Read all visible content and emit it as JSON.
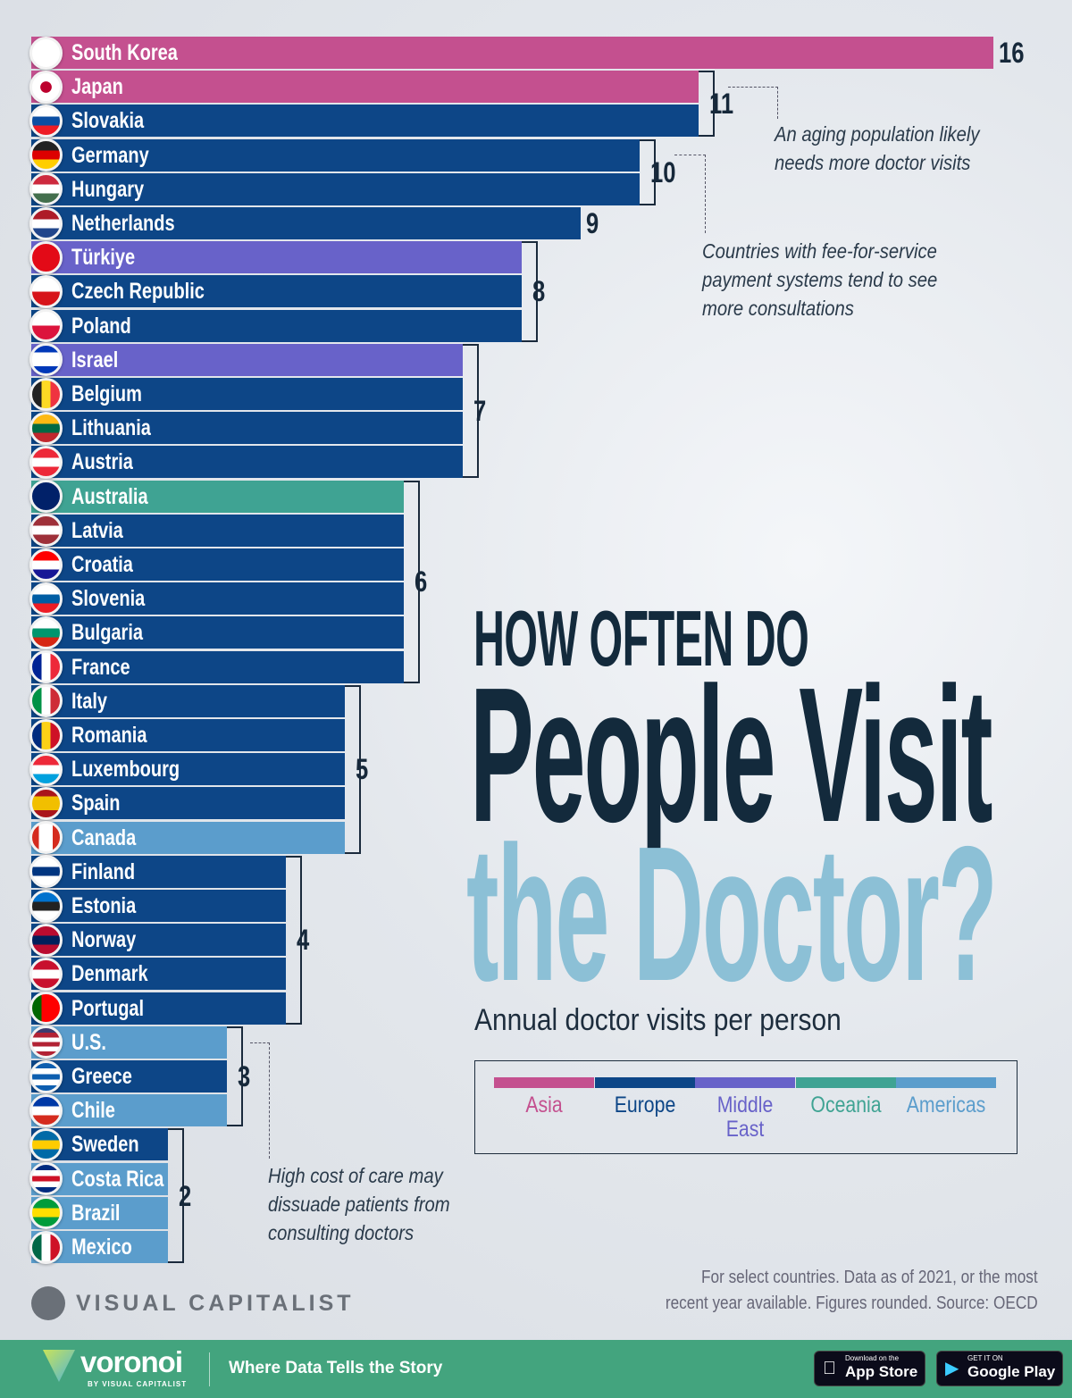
{
  "chart_data": {
    "type": "bar",
    "orientation": "horizontal",
    "title": "HOW OFTEN DO People Visit the Doctor?",
    "title_parts": [
      "HOW OFTEN DO",
      "People Visit",
      "the Doctor?"
    ],
    "subtitle": "Annual doctor visits per person",
    "xlim": [
      0,
      16
    ],
    "grid": false,
    "legend_placement": "right",
    "regions": [
      {
        "name": "Asia",
        "color": "#c4508f"
      },
      {
        "name": "Europe",
        "color": "#0d4687"
      },
      {
        "name": "Middle East",
        "color": "#6862c9"
      },
      {
        "name": "Oceania",
        "color": "#3fa393"
      },
      {
        "name": "Americas",
        "color": "#5b9dcc"
      }
    ],
    "data": [
      {
        "country": "South Korea",
        "value": 16,
        "region": "Asia",
        "flag": [
          "h",
          "#fff",
          "#fff"
        ]
      },
      {
        "country": "Japan",
        "value": 11,
        "region": "Asia",
        "flag": [
          "jp"
        ]
      },
      {
        "country": "Slovakia",
        "value": 11,
        "region": "Europe",
        "flag": [
          "h",
          "#fff",
          "#0b4ea2",
          "#ee1c25"
        ]
      },
      {
        "country": "Germany",
        "value": 10,
        "region": "Europe",
        "flag": [
          "h",
          "#222",
          "#dd0000",
          "#ffce00"
        ]
      },
      {
        "country": "Hungary",
        "value": 10,
        "region": "Europe",
        "flag": [
          "h",
          "#cd2a3e",
          "#fff",
          "#436f4d"
        ]
      },
      {
        "country": "Netherlands",
        "value": 9,
        "region": "Europe",
        "flag": [
          "h",
          "#ae1c28",
          "#fff",
          "#21468b"
        ]
      },
      {
        "country": "Türkiye",
        "value": 8,
        "region": "Middle East",
        "flag": [
          "h",
          "#e30a17"
        ]
      },
      {
        "country": "Czech Republic",
        "value": 8,
        "region": "Europe",
        "flag": [
          "h",
          "#fff",
          "#d7141a"
        ]
      },
      {
        "country": "Poland",
        "value": 8,
        "region": "Europe",
        "flag": [
          "h",
          "#fff",
          "#dc143c"
        ]
      },
      {
        "country": "Israel",
        "value": 7,
        "region": "Middle East",
        "flag": [
          "h",
          "#0038b8",
          "#fff",
          "#fff",
          "#0038b8"
        ]
      },
      {
        "country": "Belgium",
        "value": 7,
        "region": "Europe",
        "flag": [
          "v",
          "#222",
          "#fdda24",
          "#ef3340"
        ]
      },
      {
        "country": "Lithuania",
        "value": 7,
        "region": "Europe",
        "flag": [
          "h",
          "#fdb913",
          "#006a44",
          "#c1272d"
        ]
      },
      {
        "country": "Austria",
        "value": 7,
        "region": "Europe",
        "flag": [
          "h",
          "#ed2939",
          "#fff",
          "#ed2939"
        ]
      },
      {
        "country": "Australia",
        "value": 6,
        "region": "Oceania",
        "flag": [
          "h",
          "#012169"
        ]
      },
      {
        "country": "Latvia",
        "value": 6,
        "region": "Europe",
        "flag": [
          "h",
          "#9e3039",
          "#fff",
          "#9e3039"
        ]
      },
      {
        "country": "Croatia",
        "value": 6,
        "region": "Europe",
        "flag": [
          "h",
          "#ff0000",
          "#fff",
          "#171796"
        ]
      },
      {
        "country": "Slovenia",
        "value": 6,
        "region": "Europe",
        "flag": [
          "h",
          "#fff",
          "#005da4",
          "#ed1c24"
        ]
      },
      {
        "country": "Bulgaria",
        "value": 6,
        "region": "Europe",
        "flag": [
          "h",
          "#fff",
          "#00966e",
          "#d62612"
        ]
      },
      {
        "country": "France",
        "value": 6,
        "region": "Europe",
        "flag": [
          "v",
          "#002395",
          "#fff",
          "#ed2939"
        ]
      },
      {
        "country": "Italy",
        "value": 5,
        "region": "Europe",
        "flag": [
          "v",
          "#009246",
          "#fff",
          "#ce2b37"
        ]
      },
      {
        "country": "Romania",
        "value": 5,
        "region": "Europe",
        "flag": [
          "v",
          "#002b7f",
          "#fcd116",
          "#ce1126"
        ]
      },
      {
        "country": "Luxembourg",
        "value": 5,
        "region": "Europe",
        "flag": [
          "h",
          "#ed2939",
          "#fff",
          "#00a1de"
        ]
      },
      {
        "country": "Spain",
        "value": 5,
        "region": "Europe",
        "flag": [
          "h",
          "#aa151b",
          "#f1bf00",
          "#f1bf00",
          "#aa151b"
        ]
      },
      {
        "country": "Canada",
        "value": 5,
        "region": "Americas",
        "flag": [
          "v",
          "#d52b1e",
          "#fff",
          "#fff",
          "#d52b1e"
        ]
      },
      {
        "country": "Finland",
        "value": 4,
        "region": "Europe",
        "flag": [
          "h",
          "#fff",
          "#003580",
          "#fff"
        ]
      },
      {
        "country": "Estonia",
        "value": 4,
        "region": "Europe",
        "flag": [
          "h",
          "#0072ce",
          "#222",
          "#fff"
        ]
      },
      {
        "country": "Norway",
        "value": 4,
        "region": "Europe",
        "flag": [
          "h",
          "#ba0c2f",
          "#00205b",
          "#ba0c2f"
        ]
      },
      {
        "country": "Denmark",
        "value": 4,
        "region": "Europe",
        "flag": [
          "h",
          "#c8102e",
          "#fff",
          "#c8102e"
        ]
      },
      {
        "country": "Portugal",
        "value": 4,
        "region": "Europe",
        "flag": [
          "v",
          "#006600",
          "#ff0000",
          "#ff0000"
        ]
      },
      {
        "country": "U.S.",
        "value": 3,
        "region": "Americas",
        "flag": [
          "h",
          "#3c3b6e",
          "#b22234",
          "#fff",
          "#b22234",
          "#fff",
          "#b22234"
        ]
      },
      {
        "country": "Greece",
        "value": 3,
        "region": "Europe",
        "flag": [
          "h",
          "#0d5eaf",
          "#fff",
          "#0d5eaf",
          "#fff",
          "#0d5eaf"
        ]
      },
      {
        "country": "Chile",
        "value": 3,
        "region": "Americas",
        "flag": [
          "h",
          "#0039a6",
          "#fff",
          "#d52b1e"
        ]
      },
      {
        "country": "Sweden",
        "value": 2,
        "region": "Europe",
        "flag": [
          "h",
          "#006aa7",
          "#fecc00",
          "#006aa7"
        ]
      },
      {
        "country": "Costa Rica",
        "value": 2,
        "region": "Americas",
        "flag": [
          "h",
          "#002b7f",
          "#fff",
          "#ce1126",
          "#fff",
          "#002b7f"
        ]
      },
      {
        "country": "Brazil",
        "value": 2,
        "region": "Americas",
        "flag": [
          "h",
          "#009c3b",
          "#ffdf00",
          "#009c3b"
        ]
      },
      {
        "country": "Mexico",
        "value": 2,
        "region": "Americas",
        "flag": [
          "v",
          "#006847",
          "#fff",
          "#ce1126"
        ]
      }
    ],
    "annotations": [
      "An aging population likely needs more doctor visits",
      "Countries with fee-for-service payment systems tend to see more consultations",
      "High cost of care may dissuade patients from consulting doctors"
    ]
  },
  "annotation_lines": [
    [
      "An aging population likely",
      "needs more doctor visits"
    ],
    [
      "Countries with fee-for-service",
      "payment systems tend to see",
      "more consultations"
    ],
    [
      "High cost of care may",
      "dissuade patients from",
      "consulting doctors"
    ]
  ],
  "source": [
    "For select countries.  Data as of 2021, or the most",
    "recent year available. Figures rounded. Source: OECD"
  ],
  "brand": "VISUAL CAPITALIST",
  "footer": {
    "logo": "voronoi",
    "by": "BY VISUAL CAPITALIST",
    "tagline": "Where Data Tells the Story",
    "app_store": {
      "small": "Download on the",
      "big": "App Store"
    },
    "google_play": {
      "small": "GET IT ON",
      "big": "Google Play"
    },
    "background": "#43a47e"
  }
}
